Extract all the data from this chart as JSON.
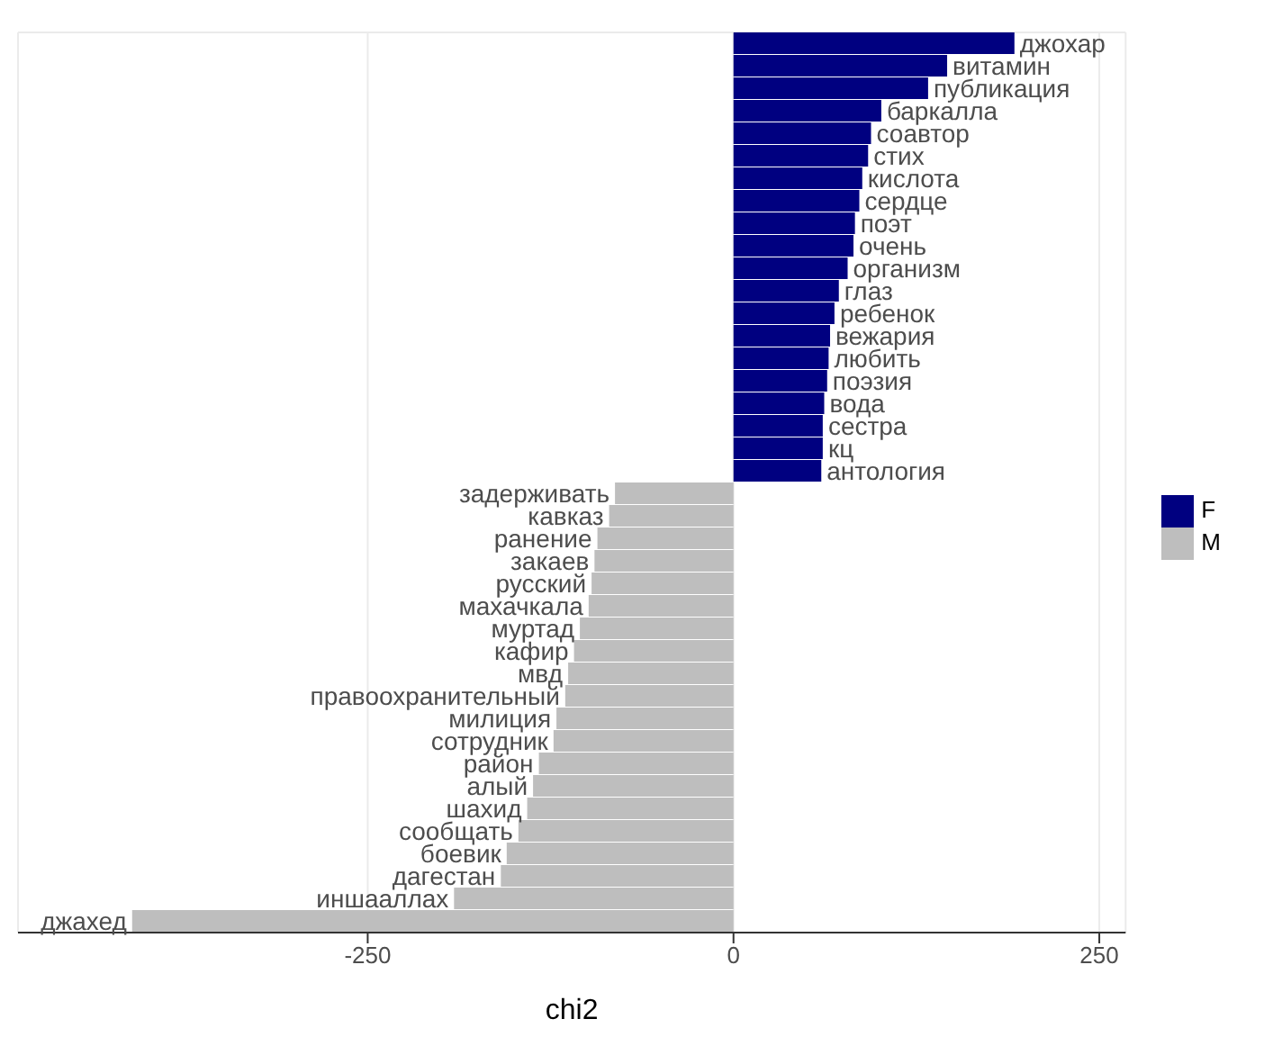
{
  "chart_data": {
    "type": "bar",
    "orientation": "horizontal",
    "stacked": true,
    "xlabel": "chi2",
    "categories": [
      "джохар",
      "витамин",
      "публикация",
      "баркалла",
      "соавтор",
      "стих",
      "кислота",
      "сердце",
      "поэт",
      "очень",
      "организм",
      "глаз",
      "ребенок",
      "вежария",
      "любить",
      "поэзия",
      "вода",
      "сестра",
      "кц",
      "антология",
      "задерживать",
      "кавказ",
      "ранение",
      "закаев",
      "русский",
      "махачкала",
      "муртад",
      "кафир",
      "мвд",
      "правоохранительный",
      "милиция",
      "сотрудник",
      "район",
      "алый",
      "шахид",
      "сообщать",
      "боевик",
      "дагестан",
      "иншааллах",
      "джахед"
    ],
    "series": [
      {
        "name": "F",
        "color": "#000080",
        "values": [
          192,
          146,
          133,
          101,
          94,
          92,
          88,
          86,
          83,
          82,
          78,
          72,
          69,
          66,
          65,
          64,
          62,
          61,
          61,
          60,
          null,
          null,
          null,
          null,
          null,
          null,
          null,
          null,
          null,
          null,
          null,
          null,
          null,
          null,
          null,
          null,
          null,
          null,
          null,
          null
        ]
      },
      {
        "name": "M",
        "color": "#bebebe",
        "values": [
          null,
          null,
          null,
          null,
          null,
          null,
          null,
          null,
          null,
          null,
          null,
          null,
          null,
          null,
          null,
          null,
          null,
          null,
          null,
          null,
          -81,
          -85,
          -93,
          -95,
          -97,
          -99,
          -105,
          -109,
          -113,
          -115,
          -121,
          -123,
          -133,
          -137,
          -141,
          -147,
          -155,
          -159,
          -191,
          -411
        ]
      }
    ],
    "xlim": [
      -489,
      268
    ],
    "xticks": [
      -250,
      0,
      250
    ],
    "tick_labels": "x",
    "grid": true,
    "legend": "right"
  }
}
